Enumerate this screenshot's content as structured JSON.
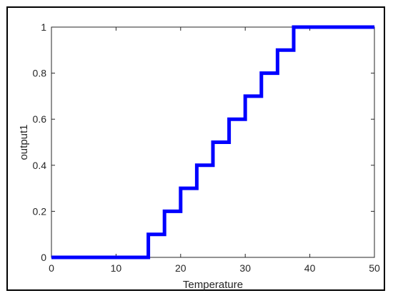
{
  "chart_data": {
    "type": "line",
    "title": "",
    "xlabel": "Temperature",
    "ylabel": "output1",
    "xlim": [
      0,
      50
    ],
    "ylim": [
      0,
      1
    ],
    "xticks": [
      0,
      10,
      20,
      30,
      40,
      50
    ],
    "yticks": [
      0,
      0.2,
      0.4,
      0.6,
      0.8,
      1
    ],
    "ytick_labels": [
      "0",
      "0.2",
      "0.4",
      "0.6",
      "0.8",
      "1"
    ],
    "grid": false,
    "line_color": "#0000ff",
    "series": [
      {
        "step": "post",
        "x": [
          0,
          15,
          17.5,
          20,
          22.5,
          25,
          27.5,
          30,
          32.5,
          35,
          37.5,
          50
        ],
        "y": [
          0,
          0.1,
          0.2,
          0.3,
          0.4,
          0.5,
          0.6,
          0.7,
          0.8,
          0.9,
          1,
          1
        ]
      }
    ]
  }
}
